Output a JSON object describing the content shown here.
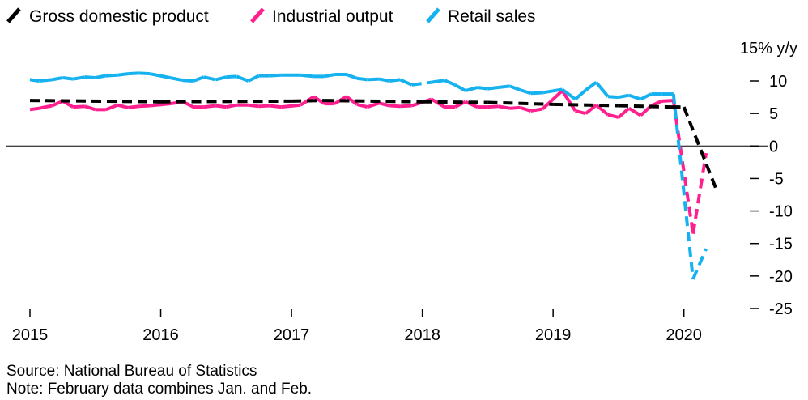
{
  "chart_data": {
    "type": "line",
    "title": "",
    "xlabel": "",
    "ylabel": "",
    "y_unit_label": "15% y/y",
    "ylim": [
      -25,
      15
    ],
    "yticks": [
      10,
      5,
      0,
      -5,
      -10,
      -15,
      -20,
      -25
    ],
    "ytick_labels": [
      "10",
      "5",
      "0",
      "-5",
      "-10",
      "-15",
      "-20",
      "-25"
    ],
    "x_start": 2015.0,
    "x_end": 2020.33,
    "xticks": [
      2015,
      2016,
      2017,
      2018,
      2019,
      2020
    ],
    "xtick_labels": [
      "2015",
      "2016",
      "2017",
      "2018",
      "2019",
      "2020"
    ],
    "grid": false,
    "legend_position": "top-left",
    "series": [
      {
        "name": "Gross domestic product",
        "color": "#000000",
        "style": "dashed",
        "points": [
          [
            2015.0,
            7.0
          ],
          [
            2016.0,
            6.8
          ],
          [
            2017.0,
            6.9
          ],
          [
            2017.25,
            7.0
          ],
          [
            2018.0,
            6.8
          ],
          [
            2018.5,
            6.7
          ],
          [
            2019.0,
            6.4
          ],
          [
            2019.5,
            6.2
          ],
          [
            2019.9,
            6.0
          ],
          [
            2020.0,
            6.0
          ],
          [
            2020.25,
            -6.8
          ]
        ]
      },
      {
        "name": "Industrial output",
        "color": "#ff1f8e",
        "style": "mixed",
        "points": [
          [
            2015.0,
            5.6
          ],
          [
            2015.07,
            5.8
          ],
          [
            2015.17,
            6.2
          ],
          [
            2015.25,
            6.9
          ],
          [
            2015.33,
            6.0
          ],
          [
            2015.42,
            6.1
          ],
          [
            2015.5,
            5.6
          ],
          [
            2015.58,
            5.6
          ],
          [
            2015.67,
            6.3
          ],
          [
            2015.75,
            5.9
          ],
          [
            2015.83,
            6.1
          ],
          [
            2015.92,
            6.2
          ],
          [
            2016.07,
            6.5
          ],
          [
            2016.17,
            6.8
          ],
          [
            2016.25,
            6.0
          ],
          [
            2016.33,
            6.0
          ],
          [
            2016.42,
            6.2
          ],
          [
            2016.5,
            6.0
          ],
          [
            2016.58,
            6.3
          ],
          [
            2016.67,
            6.3
          ],
          [
            2016.75,
            6.1
          ],
          [
            2016.83,
            6.2
          ],
          [
            2016.92,
            6.0
          ],
          [
            2017.07,
            6.3
          ],
          [
            2017.17,
            7.6
          ],
          [
            2017.25,
            6.5
          ],
          [
            2017.33,
            6.5
          ],
          [
            2017.42,
            7.6
          ],
          [
            2017.5,
            6.4
          ],
          [
            2017.58,
            6.0
          ],
          [
            2017.67,
            6.6
          ],
          [
            2017.75,
            6.2
          ],
          [
            2017.83,
            6.1
          ],
          [
            2017.92,
            6.2
          ],
          [
            2018.07,
            7.2
          ],
          [
            2018.17,
            6.0
          ],
          [
            2018.25,
            6.0
          ],
          [
            2018.33,
            6.8
          ],
          [
            2018.42,
            6.0
          ],
          [
            2018.5,
            6.0
          ],
          [
            2018.58,
            6.1
          ],
          [
            2018.67,
            5.8
          ],
          [
            2018.75,
            5.9
          ],
          [
            2018.83,
            5.4
          ],
          [
            2018.92,
            5.7
          ],
          [
            2019.07,
            8.5
          ],
          [
            2019.17,
            5.4
          ],
          [
            2019.25,
            5.0
          ],
          [
            2019.33,
            6.3
          ],
          [
            2019.42,
            4.8
          ],
          [
            2019.5,
            4.4
          ],
          [
            2019.58,
            5.8
          ],
          [
            2019.67,
            4.7
          ],
          [
            2019.75,
            6.2
          ],
          [
            2019.83,
            6.9
          ],
          [
            2019.92,
            7.0
          ],
          [
            2020.07,
            -13.5
          ],
          [
            2020.17,
            -1.1
          ]
        ],
        "dashed_from": [
          2018.75,
          2019.07
        ]
      },
      {
        "name": "Retail sales",
        "color": "#16b2f0",
        "style": "mixed",
        "points": [
          [
            2015.0,
            10.2
          ],
          [
            2015.07,
            10.0
          ],
          [
            2015.17,
            10.2
          ],
          [
            2015.25,
            10.5
          ],
          [
            2015.33,
            10.3
          ],
          [
            2015.42,
            10.6
          ],
          [
            2015.5,
            10.5
          ],
          [
            2015.58,
            10.8
          ],
          [
            2015.67,
            10.9
          ],
          [
            2015.75,
            11.1
          ],
          [
            2015.83,
            11.2
          ],
          [
            2015.92,
            11.1
          ],
          [
            2016.07,
            10.5
          ],
          [
            2016.17,
            10.1
          ],
          [
            2016.25,
            10.0
          ],
          [
            2016.33,
            10.6
          ],
          [
            2016.42,
            10.2
          ],
          [
            2016.5,
            10.6
          ],
          [
            2016.58,
            10.7
          ],
          [
            2016.67,
            10.0
          ],
          [
            2016.75,
            10.8
          ],
          [
            2016.83,
            10.8
          ],
          [
            2016.92,
            10.9
          ],
          [
            2017.07,
            10.9
          ],
          [
            2017.17,
            10.7
          ],
          [
            2017.25,
            10.7
          ],
          [
            2017.33,
            11.0
          ],
          [
            2017.42,
            11.0
          ],
          [
            2017.5,
            10.4
          ],
          [
            2017.58,
            10.2
          ],
          [
            2017.67,
            10.3
          ],
          [
            2017.75,
            10.0
          ],
          [
            2017.83,
            10.2
          ],
          [
            2017.92,
            9.4
          ],
          [
            2018.07,
            9.8
          ],
          [
            2018.17,
            10.1
          ],
          [
            2018.25,
            9.4
          ],
          [
            2018.33,
            8.5
          ],
          [
            2018.42,
            9.0
          ],
          [
            2018.5,
            8.8
          ],
          [
            2018.58,
            9.0
          ],
          [
            2018.67,
            9.2
          ],
          [
            2018.75,
            8.6
          ],
          [
            2018.83,
            8.1
          ],
          [
            2018.92,
            8.2
          ],
          [
            2019.07,
            8.7
          ],
          [
            2019.17,
            7.2
          ],
          [
            2019.25,
            8.6
          ],
          [
            2019.33,
            9.8
          ],
          [
            2019.42,
            7.6
          ],
          [
            2019.5,
            7.5
          ],
          [
            2019.58,
            7.8
          ],
          [
            2019.67,
            7.2
          ],
          [
            2019.75,
            8.0
          ],
          [
            2019.83,
            8.0
          ],
          [
            2019.92,
            8.0
          ],
          [
            2020.07,
            -20.5
          ],
          [
            2020.17,
            -15.8
          ]
        ],
        "dashed_from": [
          2017.92,
          2018.07
        ]
      }
    ]
  },
  "legend": [
    {
      "label": "Gross domestic product",
      "color": "#000000"
    },
    {
      "label": "Industrial output",
      "color": "#ff1f8e"
    },
    {
      "label": "Retail sales",
      "color": "#16b2f0"
    }
  ],
  "footnotes": {
    "source": "Source: National Bureau of Statistics",
    "note": "Note: February data combines Jan. and Feb."
  }
}
